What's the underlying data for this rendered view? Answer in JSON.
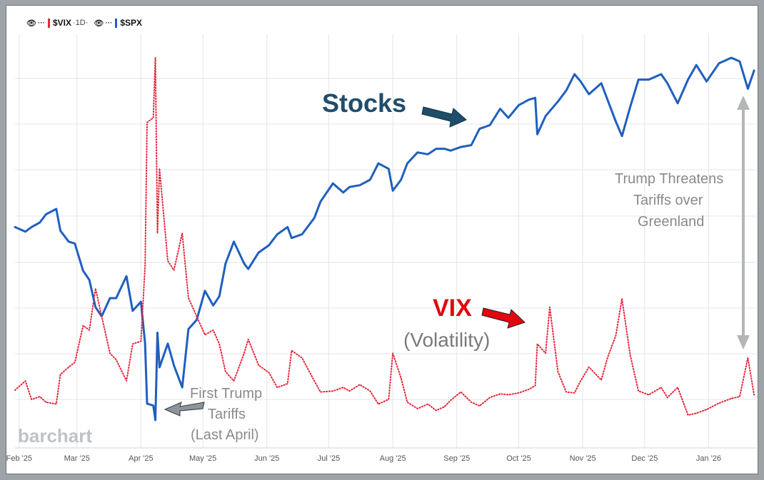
{
  "legend": {
    "vix_label": "$VIX",
    "vix_interval": "·1D·",
    "spx_label": "$SPX"
  },
  "icons": {
    "visibility": "eye-icon",
    "more": "more-icon"
  },
  "colors": {
    "spx": "#1f5fbf",
    "vix": "#e8253a",
    "stocks_text": "#1f4e6b",
    "vix_text": "#e2060f",
    "annotation_gray": "#7a7a7a",
    "background": "#9ea3a8"
  },
  "annotations": {
    "stocks": "Stocks",
    "vix": "VIX",
    "volatility": "(Volatility)",
    "greenland_1": "Trump Threatens",
    "greenland_2": "Tariffs over",
    "greenland_3": "Greenland",
    "first_1": "First Trump",
    "first_2": "Tariffs",
    "first_3": "(Last April)"
  },
  "watermark": "barchart",
  "chart_data": {
    "type": "line",
    "x_axis": {
      "type": "date",
      "range": [
        "2025-01-30",
        "2026-01-24"
      ],
      "tick_labels": [
        "Feb '25",
        "Mar '25",
        "Apr '25",
        "May '25",
        "Jun '25",
        "Jul '25",
        "Aug '25",
        "Sep '25",
        "Oct '25",
        "Nov '25",
        "Dec '25",
        "Jan '26"
      ],
      "tick_dates": [
        "2025-02-01",
        "2025-03-01",
        "2025-04-01",
        "2025-05-01",
        "2025-06-01",
        "2025-07-01",
        "2025-08-01",
        "2025-09-01",
        "2025-10-01",
        "2025-11-01",
        "2025-12-01",
        "2026-01-01"
      ]
    },
    "y_axis": {
      "tick_labels": [],
      "note": "no price scale shown; overlay comparison"
    },
    "grid": true,
    "legend_position": "top-left",
    "series": [
      {
        "name": "$SPX",
        "style": "solid",
        "x": [
          "2025-01-30",
          "2025-02-04",
          "2025-02-07",
          "2025-02-11",
          "2025-02-14",
          "2025-02-19",
          "2025-02-21",
          "2025-02-25",
          "2025-02-28",
          "2025-03-04",
          "2025-03-07",
          "2025-03-10",
          "2025-03-13",
          "2025-03-17",
          "2025-03-20",
          "2025-03-25",
          "2025-03-28",
          "2025-04-01",
          "2025-04-03",
          "2025-04-04",
          "2025-04-07",
          "2025-04-08",
          "2025-04-09",
          "2025-04-10",
          "2025-04-14",
          "2025-04-17",
          "2025-04-21",
          "2025-04-24",
          "2025-04-28",
          "2025-05-02",
          "2025-05-06",
          "2025-05-09",
          "2025-05-12",
          "2025-05-16",
          "2025-05-21",
          "2025-05-23",
          "2025-05-28",
          "2025-06-02",
          "2025-06-06",
          "2025-06-11",
          "2025-06-13",
          "2025-06-18",
          "2025-06-24",
          "2025-06-27",
          "2025-07-03",
          "2025-07-08",
          "2025-07-11",
          "2025-07-16",
          "2025-07-21",
          "2025-07-25",
          "2025-07-30",
          "2025-08-01",
          "2025-08-05",
          "2025-08-08",
          "2025-08-13",
          "2025-08-18",
          "2025-08-22",
          "2025-08-26",
          "2025-08-29",
          "2025-09-03",
          "2025-09-08",
          "2025-09-12",
          "2025-09-17",
          "2025-09-22",
          "2025-09-26",
          "2025-10-01",
          "2025-10-06",
          "2025-10-09",
          "2025-10-10",
          "2025-10-14",
          "2025-10-20",
          "2025-10-24",
          "2025-10-28",
          "2025-10-31",
          "2025-11-04",
          "2025-11-10",
          "2025-11-13",
          "2025-11-17",
          "2025-11-20",
          "2025-11-24",
          "2025-11-28",
          "2025-12-03",
          "2025-12-09",
          "2025-12-12",
          "2025-12-17",
          "2025-12-22",
          "2025-12-26",
          "2025-12-31",
          "2026-01-06",
          "2026-01-12",
          "2026-01-16",
          "2026-01-20",
          "2026-01-23"
        ],
        "values": [
          6040,
          6015,
          6040,
          6065,
          6110,
          6140,
          6020,
          5960,
          5950,
          5800,
          5750,
          5600,
          5550,
          5650,
          5650,
          5770,
          5580,
          5630,
          5400,
          5070,
          5060,
          4980,
          5460,
          5270,
          5400,
          5280,
          5160,
          5480,
          5530,
          5690,
          5610,
          5660,
          5840,
          5960,
          5840,
          5810,
          5900,
          5940,
          6000,
          6040,
          5980,
          6000,
          6090,
          6180,
          6280,
          6230,
          6260,
          6270,
          6300,
          6390,
          6360,
          6240,
          6300,
          6390,
          6450,
          6440,
          6470,
          6470,
          6460,
          6480,
          6490,
          6580,
          6600,
          6690,
          6640,
          6710,
          6740,
          6750,
          6550,
          6650,
          6730,
          6790,
          6880,
          6840,
          6770,
          6830,
          6740,
          6620,
          6540,
          6700,
          6850,
          6850,
          6880,
          6830,
          6720,
          6850,
          6930,
          6840,
          6940,
          6970,
          6950,
          6800,
          6900
        ]
      },
      {
        "name": "$VIX",
        "style": "dotted",
        "x": [
          "2025-01-30",
          "2025-02-04",
          "2025-02-07",
          "2025-02-11",
          "2025-02-14",
          "2025-02-19",
          "2025-02-21",
          "2025-02-25",
          "2025-02-28",
          "2025-03-04",
          "2025-03-07",
          "2025-03-10",
          "2025-03-13",
          "2025-03-17",
          "2025-03-20",
          "2025-03-25",
          "2025-03-28",
          "2025-04-01",
          "2025-04-03",
          "2025-04-04",
          "2025-04-07",
          "2025-04-08",
          "2025-04-09",
          "2025-04-10",
          "2025-04-14",
          "2025-04-17",
          "2025-04-21",
          "2025-04-24",
          "2025-04-28",
          "2025-05-02",
          "2025-05-06",
          "2025-05-09",
          "2025-05-12",
          "2025-05-16",
          "2025-05-21",
          "2025-05-23",
          "2025-05-28",
          "2025-06-02",
          "2025-06-06",
          "2025-06-11",
          "2025-06-13",
          "2025-06-18",
          "2025-06-24",
          "2025-06-27",
          "2025-07-03",
          "2025-07-08",
          "2025-07-11",
          "2025-07-16",
          "2025-07-21",
          "2025-07-25",
          "2025-07-30",
          "2025-08-01",
          "2025-08-05",
          "2025-08-08",
          "2025-08-13",
          "2025-08-18",
          "2025-08-22",
          "2025-08-26",
          "2025-08-29",
          "2025-09-03",
          "2025-09-08",
          "2025-09-12",
          "2025-09-17",
          "2025-09-22",
          "2025-09-26",
          "2025-10-01",
          "2025-10-06",
          "2025-10-09",
          "2025-10-10",
          "2025-10-14",
          "2025-10-16",
          "2025-10-20",
          "2025-10-24",
          "2025-10-28",
          "2025-10-31",
          "2025-11-04",
          "2025-11-10",
          "2025-11-13",
          "2025-11-17",
          "2025-11-20",
          "2025-11-24",
          "2025-11-28",
          "2025-12-03",
          "2025-12-09",
          "2025-12-12",
          "2025-12-17",
          "2025-12-22",
          "2025-12-26",
          "2025-12-31",
          "2026-01-06",
          "2026-01-12",
          "2026-01-16",
          "2026-01-20",
          "2026-01-23"
        ],
        "values": [
          16.5,
          17.5,
          15.5,
          15.8,
          15.2,
          15.0,
          18.2,
          19.0,
          19.5,
          23.5,
          23.0,
          27.5,
          24.5,
          20.5,
          19.8,
          17.5,
          21.5,
          21.8,
          30.0,
          45.5,
          46.0,
          52.5,
          33.5,
          40.5,
          30.5,
          29.5,
          33.5,
          26.5,
          24.5,
          22.5,
          23.0,
          21.5,
          18.5,
          17.5,
          20.5,
          22.0,
          19.2,
          18.4,
          16.8,
          17.2,
          20.8,
          20.0,
          17.5,
          16.3,
          16.4,
          16.8,
          16.4,
          17.1,
          16.4,
          15.0,
          15.5,
          20.5,
          17.8,
          15.2,
          14.5,
          15.0,
          14.3,
          14.7,
          15.4,
          16.3,
          15.2,
          14.8,
          15.7,
          16.1,
          16.0,
          16.2,
          16.6,
          17.0,
          21.5,
          20.5,
          25.5,
          18.5,
          16.3,
          16.2,
          17.5,
          19.0,
          17.6,
          20.0,
          22.4,
          26.4,
          20.3,
          16.4,
          16.0,
          16.8,
          15.7,
          16.8,
          13.8,
          14.0,
          14.4,
          15.1,
          15.6,
          15.8,
          20.0,
          16.0
        ]
      }
    ]
  }
}
